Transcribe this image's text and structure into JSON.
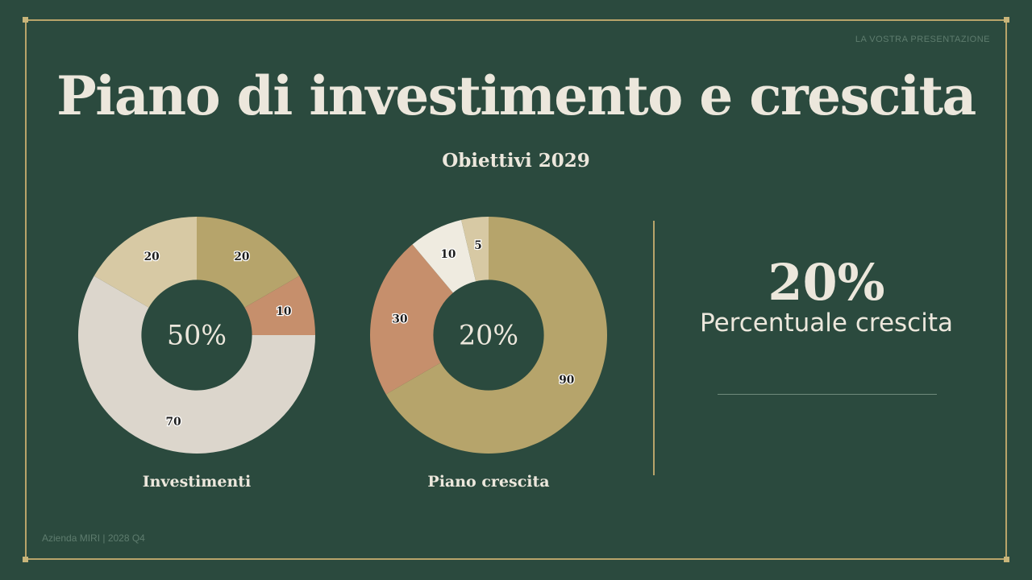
{
  "header": {
    "label": "LA VOSTRA PRESENTAZIONE"
  },
  "title": "Piano di investimento e crescita",
  "subtitle": "Obiettivi 2029",
  "chart_data": [
    {
      "type": "pie",
      "title": "Investimenti",
      "center_label": "50%",
      "values": [
        20,
        10,
        70,
        20
      ],
      "labels": [
        "20",
        "10",
        "70",
        "20"
      ],
      "colors": [
        "#b6a46b",
        "#c68f6c",
        "#dcd6cc",
        "#d7c9a4"
      ]
    },
    {
      "type": "pie",
      "title": "Piano crescita",
      "center_label": "20%",
      "values": [
        90,
        30,
        10,
        5
      ],
      "labels": [
        "90",
        "30",
        "10",
        "5"
      ],
      "colors": [
        "#b6a46b",
        "#c68f6c",
        "#efebe0",
        "#d7c9a4"
      ]
    }
  ],
  "stat": {
    "value": "20%",
    "label": "Percentuale crescita"
  },
  "footer": "Azienda MIRI | 2028 Q4",
  "colors": {
    "background": "#2b4a3e",
    "frame": "#b8a46a",
    "text": "#ece7dc"
  }
}
